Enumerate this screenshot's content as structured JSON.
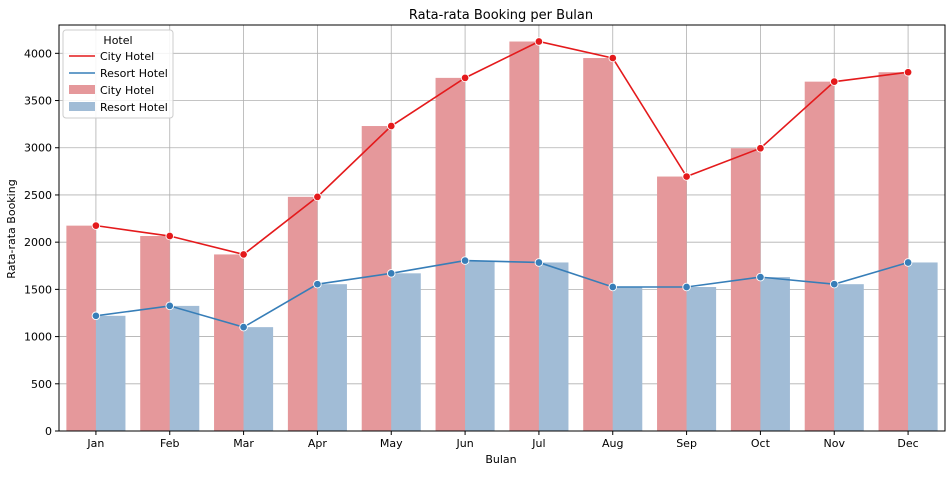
{
  "chart_data": {
    "type": "bar",
    "title": "Rata-rata Booking per Bulan",
    "xlabel": "Bulan",
    "ylabel": "Rata-rata Booking",
    "ylim": [
      0,
      4300
    ],
    "yticks": [
      0,
      500,
      1000,
      1500,
      2000,
      2500,
      3000,
      3500,
      4000
    ],
    "grid": true,
    "legend_title": "Hotel",
    "legend_placement": "top-left",
    "categories": [
      "Jan",
      "Feb",
      "Mar",
      "Apr",
      "May",
      "Jun",
      "Jul",
      "Aug",
      "Sep",
      "Oct",
      "Nov",
      "Dec"
    ],
    "series": [
      {
        "name": "City Hotel",
        "kind": "bar",
        "color": "#e5989b",
        "values": [
          2175,
          2065,
          1870,
          2480,
          3230,
          3740,
          4125,
          3950,
          2695,
          2995,
          3700,
          3800
        ]
      },
      {
        "name": "Resort Hotel",
        "kind": "bar",
        "color": "#a1bcd6",
        "values": [
          1220,
          1325,
          1100,
          1555,
          1670,
          1805,
          1785,
          1525,
          1525,
          1630,
          1555,
          1785
        ]
      },
      {
        "name": "City Hotel",
        "kind": "line",
        "color": "#e41a1c",
        "values": [
          2175,
          2065,
          1870,
          2480,
          3230,
          3740,
          4125,
          3950,
          2695,
          2995,
          3700,
          3800
        ]
      },
      {
        "name": "Resort Hotel",
        "kind": "line",
        "color": "#377eb8",
        "values": [
          1220,
          1325,
          1100,
          1555,
          1670,
          1805,
          1785,
          1525,
          1525,
          1630,
          1555,
          1785
        ]
      }
    ]
  }
}
